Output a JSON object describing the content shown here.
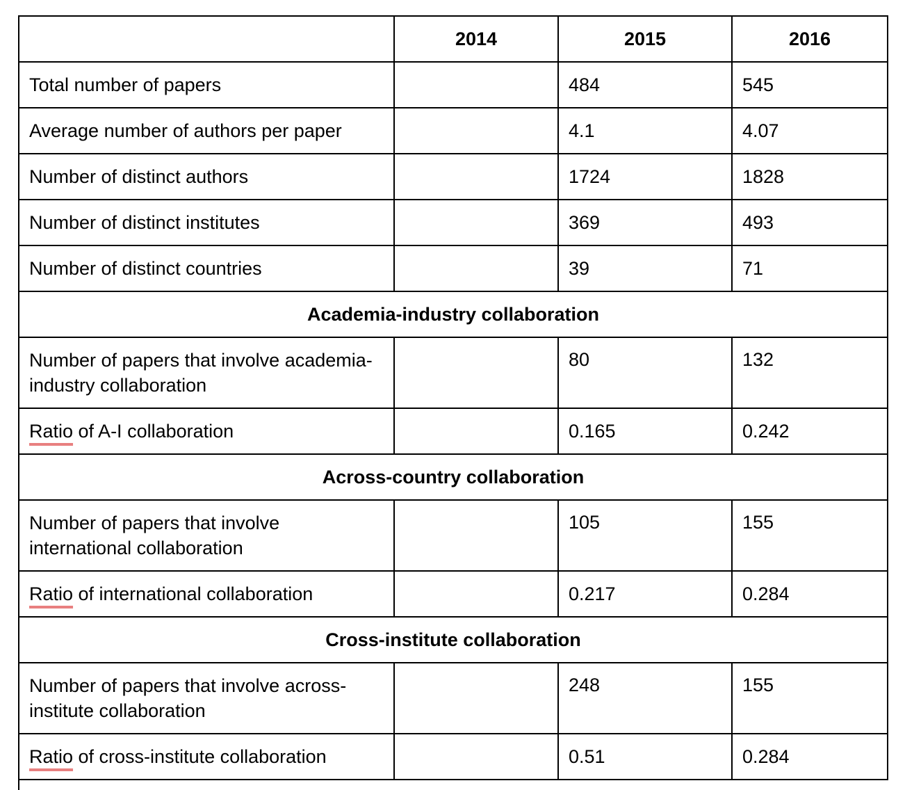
{
  "header": {
    "corner": "",
    "years": [
      "2014",
      "2015",
      "2016"
    ]
  },
  "general_rows": [
    {
      "label": "Total number of papers",
      "v2014": "",
      "v2015": "484",
      "v2016": "545"
    },
    {
      "label": "Average number of authors per paper",
      "v2014": "",
      "v2015": "4.1",
      "v2016": "4.07"
    },
    {
      "label": "Number of distinct authors",
      "v2014": "",
      "v2015": "1724",
      "v2016": "1828"
    },
    {
      "label": "Number of distinct institutes",
      "v2014": "",
      "v2015": "369",
      "v2016": "493"
    },
    {
      "label": "Number of distinct countries",
      "v2014": "",
      "v2015": "39",
      "v2016": "71"
    }
  ],
  "sections": [
    {
      "title": "Academia-industry collaboration",
      "count_row": {
        "label": "Number of papers that involve academia-industry collaboration",
        "v2014": "",
        "v2015": "80",
        "v2016": "132"
      },
      "ratio_row": {
        "label_word": "Ratio",
        "label_rest": " of A-I collaboration",
        "v2014": "",
        "v2015": "0.165",
        "v2016": "0.242"
      }
    },
    {
      "title": "Across-country collaboration",
      "count_row": {
        "label": "Number of papers that involve international collaboration",
        "v2014": "",
        "v2015": "105",
        "v2016": "155"
      },
      "ratio_row": {
        "label_word": "Ratio",
        "label_rest": " of international collaboration",
        "v2014": "",
        "v2015": "0.217",
        "v2016": "0.284"
      }
    },
    {
      "title": "Cross-institute collaboration",
      "count_row": {
        "label": "Number of papers that involve across-institute collaboration",
        "v2014": "",
        "v2015": "248",
        "v2016": "155"
      },
      "ratio_row": {
        "label_word": "Ratio",
        "label_rest": " of cross-institute collaboration",
        "v2014": "",
        "v2015": "0.51",
        "v2016": "0.284"
      }
    }
  ],
  "colors": {
    "border": "#000000",
    "spellcheck_underline": "#e88080",
    "background": "#ffffff"
  }
}
